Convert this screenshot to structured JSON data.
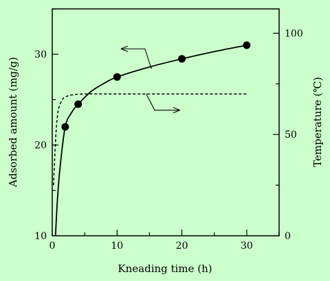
{
  "chart_data": {
    "type": "line",
    "xlabel": "Kneading time (h)",
    "ylabel": "Adsorbed amount (mg/g)",
    "y2label": "Temperature (℃)",
    "xlim": [
      0,
      35
    ],
    "ylim": [
      10,
      35
    ],
    "y2lim": [
      0,
      112
    ],
    "xticks": [
      0,
      10,
      20,
      30
    ],
    "yticks": [
      10,
      20,
      30
    ],
    "y2ticks": [
      0,
      50,
      100
    ],
    "grid": false,
    "background": "#ccffcc",
    "series": [
      {
        "style": "solid-with-markers",
        "axis": "left",
        "points": [
          {
            "x": 2,
            "y": 22.0
          },
          {
            "x": 4,
            "y": 24.5
          },
          {
            "x": 10,
            "y": 27.5
          },
          {
            "x": 20,
            "y": 29.5
          },
          {
            "x": 30,
            "y": 31.0
          }
        ],
        "curve": [
          [
            0.5,
            10
          ],
          [
            0.8,
            14
          ],
          [
            1.2,
            17.5
          ],
          [
            2,
            22
          ],
          [
            3,
            23.6
          ],
          [
            4,
            24.5
          ],
          [
            6,
            25.9
          ],
          [
            8,
            26.8
          ],
          [
            10,
            27.5
          ],
          [
            15,
            28.6
          ],
          [
            20,
            29.5
          ],
          [
            25,
            30.3
          ],
          [
            30,
            31.0
          ]
        ]
      },
      {
        "style": "dashed",
        "axis": "right",
        "curve": [
          [
            0.2,
            25
          ],
          [
            0.4,
            40
          ],
          [
            0.6,
            52
          ],
          [
            0.8,
            59
          ],
          [
            1.0,
            63
          ],
          [
            1.5,
            67
          ],
          [
            2,
            68.5
          ],
          [
            3,
            69.5
          ],
          [
            5,
            70
          ],
          [
            10,
            70
          ],
          [
            20,
            70
          ],
          [
            30,
            70
          ]
        ]
      }
    ]
  }
}
